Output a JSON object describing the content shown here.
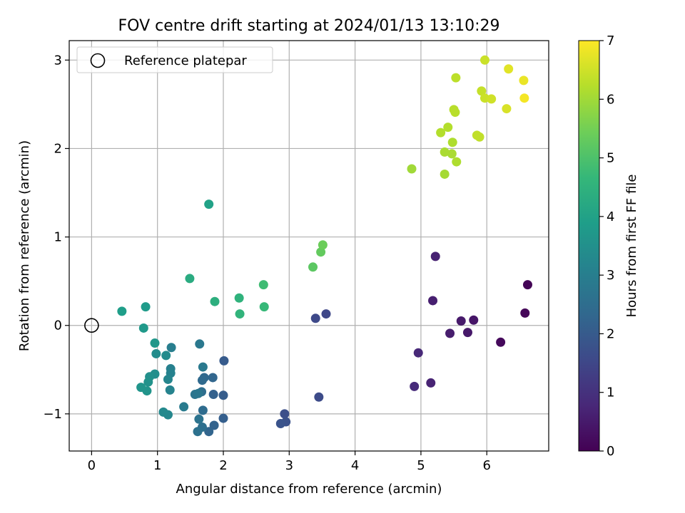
{
  "chart_data": {
    "type": "scatter",
    "title": "FOV centre drift starting at 2024/01/13 13:10:29",
    "xlabel": "Angular distance from reference (arcmin)",
    "ylabel": "Rotation from reference (arcmin)",
    "xlim": [
      -0.34,
      6.94
    ],
    "ylim": [
      -1.42,
      3.22
    ],
    "xticks": [
      0,
      1,
      2,
      3,
      4,
      5,
      6
    ],
    "yticks": [
      -1,
      0,
      1,
      2,
      3
    ],
    "grid": true,
    "legend": {
      "placement": "top-left",
      "entries": [
        "Reference platepar"
      ]
    },
    "reference_point": {
      "x": 0,
      "y": 0
    },
    "colorbar": {
      "label": "Hours from first FF file",
      "range": [
        0,
        7
      ],
      "ticks": [
        0,
        1,
        2,
        3,
        4,
        5,
        6,
        7
      ],
      "colormap": "viridis",
      "stops": [
        "#440154",
        "#482878",
        "#3e4989",
        "#31688e",
        "#26828e",
        "#1f9e89",
        "#35b779",
        "#6ece58",
        "#b5de2b",
        "#fde725"
      ]
    },
    "points": [
      {
        "x": 6.62,
        "y": 0.46,
        "c": 0.05
      },
      {
        "x": 6.58,
        "y": 0.14,
        "c": 0.1
      },
      {
        "x": 6.21,
        "y": -0.19,
        "c": 0.15
      },
      {
        "x": 5.8,
        "y": 0.06,
        "c": 0.4
      },
      {
        "x": 5.71,
        "y": -0.08,
        "c": 0.45
      },
      {
        "x": 5.61,
        "y": 0.05,
        "c": 0.5
      },
      {
        "x": 5.44,
        "y": -0.09,
        "c": 0.55
      },
      {
        "x": 5.18,
        "y": 0.28,
        "c": 0.6
      },
      {
        "x": 5.22,
        "y": 0.78,
        "c": 0.65
      },
      {
        "x": 5.15,
        "y": -0.65,
        "c": 0.7
      },
      {
        "x": 4.96,
        "y": -0.31,
        "c": 0.8
      },
      {
        "x": 4.9,
        "y": -0.69,
        "c": 0.85
      },
      {
        "x": 3.56,
        "y": 0.13,
        "c": 1.5
      },
      {
        "x": 3.4,
        "y": 0.08,
        "c": 1.55
      },
      {
        "x": 3.45,
        "y": -0.81,
        "c": 1.6
      },
      {
        "x": 2.93,
        "y": -1.0,
        "c": 1.7
      },
      {
        "x": 2.95,
        "y": -1.09,
        "c": 1.75
      },
      {
        "x": 2.87,
        "y": -1.11,
        "c": 1.8
      },
      {
        "x": 2.01,
        "y": -0.4,
        "c": 2.0
      },
      {
        "x": 2.0,
        "y": -0.79,
        "c": 2.05
      },
      {
        "x": 2.0,
        "y": -1.05,
        "c": 2.1
      },
      {
        "x": 1.85,
        "y": -0.78,
        "c": 2.15
      },
      {
        "x": 1.86,
        "y": -1.13,
        "c": 2.2
      },
      {
        "x": 1.78,
        "y": -1.2,
        "c": 2.25
      },
      {
        "x": 1.84,
        "y": -0.59,
        "c": 2.3
      },
      {
        "x": 1.71,
        "y": -0.59,
        "c": 2.35
      },
      {
        "x": 1.68,
        "y": -0.62,
        "c": 2.4
      },
      {
        "x": 1.69,
        "y": -0.96,
        "c": 2.45
      },
      {
        "x": 1.67,
        "y": -0.75,
        "c": 2.5
      },
      {
        "x": 1.68,
        "y": -1.15,
        "c": 2.55
      },
      {
        "x": 1.61,
        "y": -1.2,
        "c": 2.6
      },
      {
        "x": 1.63,
        "y": -1.06,
        "c": 2.65
      },
      {
        "x": 1.57,
        "y": -0.78,
        "c": 2.7
      },
      {
        "x": 1.62,
        "y": -0.77,
        "c": 2.75
      },
      {
        "x": 1.64,
        "y": -0.21,
        "c": 2.8
      },
      {
        "x": 1.69,
        "y": -0.47,
        "c": 2.85
      },
      {
        "x": 1.4,
        "y": -0.92,
        "c": 2.9
      },
      {
        "x": 1.21,
        "y": -0.25,
        "c": 3.0
      },
      {
        "x": 1.2,
        "y": -0.49,
        "c": 3.05
      },
      {
        "x": 1.2,
        "y": -0.54,
        "c": 3.1
      },
      {
        "x": 1.19,
        "y": -0.73,
        "c": 3.15
      },
      {
        "x": 1.16,
        "y": -0.61,
        "c": 3.2
      },
      {
        "x": 1.16,
        "y": -1.01,
        "c": 3.25
      },
      {
        "x": 1.09,
        "y": -0.98,
        "c": 3.3
      },
      {
        "x": 1.13,
        "y": -0.34,
        "c": 3.35
      },
      {
        "x": 0.98,
        "y": -0.32,
        "c": 3.4
      },
      {
        "x": 0.96,
        "y": -0.55,
        "c": 3.45
      },
      {
        "x": 0.88,
        "y": -0.58,
        "c": 3.5
      },
      {
        "x": 0.86,
        "y": -0.64,
        "c": 3.55
      },
      {
        "x": 0.84,
        "y": -0.74,
        "c": 3.6
      },
      {
        "x": 0.75,
        "y": -0.7,
        "c": 3.65
      },
      {
        "x": 0.96,
        "y": -0.2,
        "c": 3.7
      },
      {
        "x": 0.79,
        "y": -0.03,
        "c": 3.75
      },
      {
        "x": 0.82,
        "y": 0.21,
        "c": 3.8
      },
      {
        "x": 0.46,
        "y": 0.16,
        "c": 3.9
      },
      {
        "x": 1.78,
        "y": 1.37,
        "c": 4.0
      },
      {
        "x": 1.49,
        "y": 0.53,
        "c": 4.3
      },
      {
        "x": 1.87,
        "y": 0.27,
        "c": 4.4
      },
      {
        "x": 2.24,
        "y": 0.31,
        "c": 4.5
      },
      {
        "x": 2.25,
        "y": 0.13,
        "c": 4.55
      },
      {
        "x": 2.62,
        "y": 0.21,
        "c": 4.7
      },
      {
        "x": 2.61,
        "y": 0.46,
        "c": 4.8
      },
      {
        "x": 3.36,
        "y": 0.66,
        "c": 5.2
      },
      {
        "x": 3.48,
        "y": 0.83,
        "c": 5.3
      },
      {
        "x": 3.51,
        "y": 0.91,
        "c": 5.4
      },
      {
        "x": 4.86,
        "y": 1.77,
        "c": 6.0
      },
      {
        "x": 5.36,
        "y": 1.71,
        "c": 6.05
      },
      {
        "x": 5.36,
        "y": 1.96,
        "c": 6.1
      },
      {
        "x": 5.47,
        "y": 1.94,
        "c": 6.1
      },
      {
        "x": 5.54,
        "y": 1.85,
        "c": 6.15
      },
      {
        "x": 5.48,
        "y": 2.07,
        "c": 6.15
      },
      {
        "x": 5.3,
        "y": 2.18,
        "c": 6.2
      },
      {
        "x": 5.41,
        "y": 2.24,
        "c": 6.2
      },
      {
        "x": 5.5,
        "y": 2.44,
        "c": 6.25
      },
      {
        "x": 5.52,
        "y": 2.41,
        "c": 6.25
      },
      {
        "x": 5.53,
        "y": 2.8,
        "c": 6.3
      },
      {
        "x": 5.85,
        "y": 2.15,
        "c": 6.35
      },
      {
        "x": 5.89,
        "y": 2.13,
        "c": 6.35
      },
      {
        "x": 5.92,
        "y": 2.65,
        "c": 6.4
      },
      {
        "x": 5.97,
        "y": 2.57,
        "c": 6.45
      },
      {
        "x": 5.97,
        "y": 3.0,
        "c": 6.45
      },
      {
        "x": 6.07,
        "y": 2.56,
        "c": 6.5
      },
      {
        "x": 6.3,
        "y": 2.45,
        "c": 6.6
      },
      {
        "x": 6.33,
        "y": 2.9,
        "c": 6.7
      },
      {
        "x": 6.56,
        "y": 2.77,
        "c": 6.8
      },
      {
        "x": 6.57,
        "y": 2.57,
        "c": 6.9
      }
    ]
  }
}
